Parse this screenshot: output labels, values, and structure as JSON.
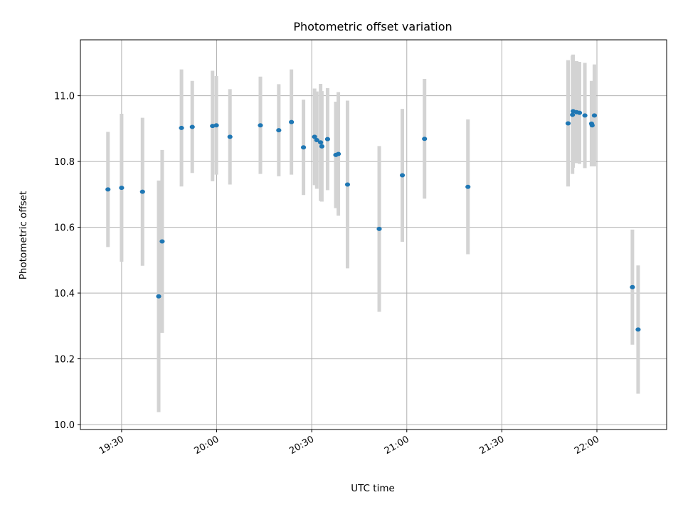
{
  "chart_data": {
    "type": "scatter",
    "title": "Photometric offset variation",
    "xlabel": "UTC time",
    "ylabel": "Photometric offset",
    "xlim": [
      "19:17",
      "22:22"
    ],
    "ylim": [
      9.985,
      11.17
    ],
    "x_ticks": [
      {
        "time": "19:30",
        "label": "19:30"
      },
      {
        "time": "20:00",
        "label": "20:00"
      },
      {
        "time": "20:30",
        "label": "20:30"
      },
      {
        "time": "21:00",
        "label": "21:00"
      },
      {
        "time": "21:30",
        "label": "21:30"
      },
      {
        "time": "22:00",
        "label": "22:00"
      }
    ],
    "y_ticks": [
      {
        "value": 10.0,
        "label": "10.0"
      },
      {
        "value": 10.2,
        "label": "10.2"
      },
      {
        "value": 10.4,
        "label": "10.4"
      },
      {
        "value": 10.6,
        "label": "10.6"
      },
      {
        "value": 10.8,
        "label": "10.8"
      },
      {
        "value": 11.0,
        "label": "11.0"
      }
    ],
    "grid": true,
    "colors": {
      "points": "#1f77b4",
      "errorbars": "#d3d3d3",
      "grid": "#b0b0b0"
    },
    "points": [
      {
        "time": "19:25.7",
        "y": 10.715,
        "err": 0.175
      },
      {
        "time": "19:30.0",
        "y": 10.72,
        "err": 0.225
      },
      {
        "time": "19:36.6",
        "y": 10.708,
        "err": 0.225
      },
      {
        "time": "19:41.7",
        "y": 10.39,
        "err": 0.352
      },
      {
        "time": "19:42.8",
        "y": 10.557,
        "err": 0.278
      },
      {
        "time": "19:48.9",
        "y": 10.902,
        "err": 0.178
      },
      {
        "time": "19:52.3",
        "y": 10.905,
        "err": 0.14
      },
      {
        "time": "19:58.7",
        "y": 10.908,
        "err": 0.168
      },
      {
        "time": "19:59.9",
        "y": 10.91,
        "err": 0.15
      },
      {
        "time": "20:04.2",
        "y": 10.875,
        "err": 0.145
      },
      {
        "time": "20:13.8",
        "y": 10.91,
        "err": 0.148
      },
      {
        "time": "20:19.6",
        "y": 10.895,
        "err": 0.14
      },
      {
        "time": "20:23.6",
        "y": 10.92,
        "err": 0.16
      },
      {
        "time": "20:27.4",
        "y": 10.843,
        "err": 0.145
      },
      {
        "time": "20:30.9",
        "y": 10.875,
        "err": 0.147
      },
      {
        "time": "20:31.6",
        "y": 10.865,
        "err": 0.148
      },
      {
        "time": "20:32.8",
        "y": 10.858,
        "err": 0.178
      },
      {
        "time": "20:33.2",
        "y": 10.846,
        "err": 0.168
      },
      {
        "time": "20:35.0",
        "y": 10.868,
        "err": 0.155
      },
      {
        "time": "20:37.6",
        "y": 10.82,
        "err": 0.162
      },
      {
        "time": "20:38.4",
        "y": 10.823,
        "err": 0.188
      },
      {
        "time": "20:41.3",
        "y": 10.73,
        "err": 0.255
      },
      {
        "time": "20:51.3",
        "y": 10.595,
        "err": 0.252
      },
      {
        "time": "20:58.6",
        "y": 10.758,
        "err": 0.202
      },
      {
        "time": "21:05.6",
        "y": 10.869,
        "err": 0.182
      },
      {
        "time": "21:19.3",
        "y": 10.723,
        "err": 0.205
      },
      {
        "time": "21:50.9",
        "y": 10.916,
        "err": 0.192
      },
      {
        "time": "21:52.3",
        "y": 10.942,
        "err": 0.18
      },
      {
        "time": "21:52.5",
        "y": 10.953,
        "err": 0.172
      },
      {
        "time": "21:53.6",
        "y": 10.95,
        "err": 0.155
      },
      {
        "time": "21:54.5",
        "y": 10.948,
        "err": 0.155
      },
      {
        "time": "21:56.2",
        "y": 10.94,
        "err": 0.16
      },
      {
        "time": "21:58.3",
        "y": 10.915,
        "err": 0.13
      },
      {
        "time": "21:58.5",
        "y": 10.91,
        "err": 0.12
      },
      {
        "time": "21:59.2",
        "y": 10.94,
        "err": 0.155
      },
      {
        "time": "22:11.2",
        "y": 10.418,
        "err": 0.175
      },
      {
        "time": "22:13.0",
        "y": 10.289,
        "err": 0.195
      }
    ]
  }
}
